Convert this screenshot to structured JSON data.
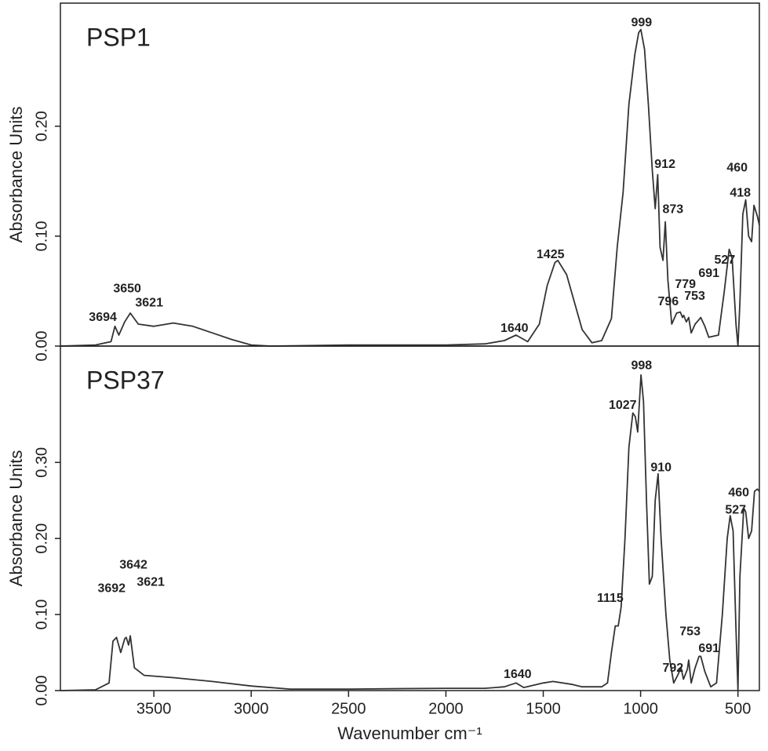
{
  "chart_data": [
    {
      "type": "line",
      "title": "PSP1",
      "y_label": "Absorbance Units",
      "color": "#333333",
      "xlim": [
        3980,
        390
      ],
      "ylim": [
        0,
        0.312
      ],
      "yticks": [
        {
          "value": 0,
          "label": "0.00"
        },
        {
          "value": 0.1,
          "label": "0.10"
        },
        {
          "value": 0.2,
          "label": "0.20"
        }
      ],
      "x": [
        3980,
        3800,
        3720,
        3700,
        3680,
        3650,
        3621,
        3580,
        3500,
        3400,
        3300,
        3200,
        3100,
        3000,
        2900,
        2500,
        2000,
        1800,
        1700,
        1640,
        1580,
        1520,
        1480,
        1440,
        1425,
        1380,
        1340,
        1300,
        1250,
        1200,
        1150,
        1120,
        1090,
        1060,
        1030,
        1010,
        999,
        980,
        960,
        940,
        925,
        912,
        900,
        885,
        873,
        860,
        840,
        815,
        796,
        785,
        779,
        765,
        753,
        740,
        720,
        691,
        670,
        650,
        600,
        570,
        545,
        530,
        510,
        500,
        490,
        475,
        460,
        445,
        430,
        418,
        400,
        390
      ],
      "values": [
        0,
        0.001,
        0.004,
        0.018,
        0.01,
        0.022,
        0.03,
        0.02,
        0.018,
        0.021,
        0.018,
        0.012,
        0.006,
        0.001,
        0,
        0.001,
        0.001,
        0.002,
        0.005,
        0.01,
        0.004,
        0.02,
        0.055,
        0.076,
        0.078,
        0.065,
        0.04,
        0.015,
        0.003,
        0.005,
        0.025,
        0.09,
        0.14,
        0.22,
        0.265,
        0.285,
        0.288,
        0.27,
        0.22,
        0.16,
        0.125,
        0.156,
        0.09,
        0.078,
        0.113,
        0.06,
        0.02,
        0.03,
        0.031,
        0.026,
        0.028,
        0.022,
        0.026,
        0.012,
        0.02,
        0.026,
        0.018,
        0.008,
        0.01,
        0.05,
        0.088,
        0.08,
        0.02,
        0,
        0.04,
        0.12,
        0.133,
        0.1,
        0.095,
        0.128,
        0.118,
        0.11
      ],
      "annotations": [
        {
          "text": "3694",
          "x": 3762,
          "y": 0.026
        },
        {
          "text": "3650",
          "x": 3637,
          "y": 0.052
        },
        {
          "text": "3621",
          "x": 3524,
          "y": 0.039
        },
        {
          "text": "1640",
          "x": 1648,
          "y": 0.016
        },
        {
          "text": "1425",
          "x": 1463,
          "y": 0.083
        },
        {
          "text": "999",
          "x": 995,
          "y": 0.294
        },
        {
          "text": "912",
          "x": 875,
          "y": 0.165
        },
        {
          "text": "873",
          "x": 834,
          "y": 0.124
        },
        {
          "text": "779",
          "x": 770,
          "y": 0.056
        },
        {
          "text": "796",
          "x": 858,
          "y": 0.04
        },
        {
          "text": "753",
          "x": 722,
          "y": 0.045
        },
        {
          "text": "691",
          "x": 649,
          "y": 0.066
        },
        {
          "text": "527",
          "x": 568,
          "y": 0.078
        },
        {
          "text": "460",
          "x": 504,
          "y": 0.162
        },
        {
          "text": "418",
          "x": 488,
          "y": 0.139
        }
      ]
    },
    {
      "type": "line",
      "title": "PSP37",
      "y_label": "Absorbance Units",
      "x_label": "Wavenumber cm⁻¹",
      "color": "#333333",
      "xlim": [
        3980,
        390
      ],
      "ylim": [
        0,
        0.453
      ],
      "xticks": [
        3500,
        3000,
        2500,
        2000,
        1500,
        1000,
        500
      ],
      "yticks": [
        {
          "value": 0,
          "label": "0.00"
        },
        {
          "value": 0.1,
          "label": "0.10"
        },
        {
          "value": 0.2,
          "label": "0.20"
        },
        {
          "value": 0.3,
          "label": "0.30"
        }
      ],
      "x": [
        3980,
        3800,
        3730,
        3710,
        3692,
        3670,
        3650,
        3642,
        3630,
        3621,
        3600,
        3550,
        3400,
        3200,
        3000,
        2800,
        2500,
        2000,
        1800,
        1700,
        1640,
        1600,
        1500,
        1450,
        1350,
        1300,
        1200,
        1170,
        1150,
        1130,
        1115,
        1100,
        1080,
        1060,
        1040,
        1027,
        1015,
        998,
        985,
        970,
        955,
        940,
        925,
        910,
        895,
        870,
        850,
        830,
        810,
        792,
        780,
        760,
        753,
        740,
        720,
        700,
        691,
        670,
        640,
        610,
        580,
        555,
        540,
        525,
        510,
        500,
        490,
        470,
        460,
        445,
        430,
        415,
        400,
        390
      ],
      "values": [
        0,
        0.001,
        0.01,
        0.065,
        0.07,
        0.05,
        0.068,
        0.07,
        0.06,
        0.072,
        0.03,
        0.02,
        0.017,
        0.012,
        0.006,
        0.002,
        0.002,
        0.003,
        0.003,
        0.005,
        0.01,
        0.004,
        0.01,
        0.012,
        0.008,
        0.005,
        0.005,
        0.01,
        0.05,
        0.085,
        0.085,
        0.11,
        0.2,
        0.32,
        0.365,
        0.36,
        0.34,
        0.415,
        0.38,
        0.25,
        0.14,
        0.15,
        0.25,
        0.285,
        0.2,
        0.1,
        0.04,
        0.01,
        0.02,
        0.03,
        0.015,
        0.028,
        0.04,
        0.01,
        0.03,
        0.045,
        0.045,
        0.025,
        0.005,
        0.01,
        0.1,
        0.2,
        0.23,
        0.21,
        0.08,
        0,
        0.15,
        0.24,
        0.235,
        0.2,
        0.21,
        0.262,
        0.265,
        0.262
      ],
      "annotations": [
        {
          "text": "3692",
          "x": 3717,
          "y": 0.134
        },
        {
          "text": "3642",
          "x": 3605,
          "y": 0.165
        },
        {
          "text": "3621",
          "x": 3516,
          "y": 0.142
        },
        {
          "text": "1640",
          "x": 1632,
          "y": 0.021
        },
        {
          "text": "1115",
          "x": 1156,
          "y": 0.121
        },
        {
          "text": "1027",
          "x": 1092,
          "y": 0.375
        },
        {
          "text": "998",
          "x": 995,
          "y": 0.427
        },
        {
          "text": "910",
          "x": 895,
          "y": 0.293
        },
        {
          "text": "792",
          "x": 834,
          "y": 0.029
        },
        {
          "text": "753",
          "x": 746,
          "y": 0.077
        },
        {
          "text": "691",
          "x": 649,
          "y": 0.055
        },
        {
          "text": "527",
          "x": 512,
          "y": 0.237
        },
        {
          "text": "460",
          "x": 496,
          "y": 0.26
        }
      ]
    }
  ]
}
